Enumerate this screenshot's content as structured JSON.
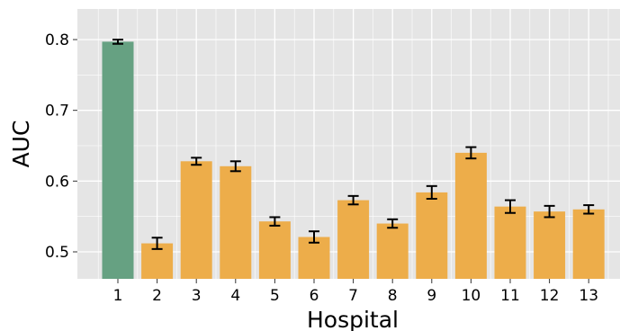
{
  "chart_data": {
    "type": "bar",
    "xlabel": "Hospital",
    "ylabel": "AUC",
    "categories": [
      "1",
      "2",
      "3",
      "4",
      "5",
      "6",
      "7",
      "8",
      "9",
      "10",
      "11",
      "12",
      "13"
    ],
    "values": [
      0.797,
      0.512,
      0.628,
      0.621,
      0.543,
      0.521,
      0.573,
      0.54,
      0.584,
      0.64,
      0.564,
      0.557,
      0.56
    ],
    "error": [
      0.003,
      0.008,
      0.005,
      0.007,
      0.006,
      0.008,
      0.006,
      0.006,
      0.009,
      0.008,
      0.009,
      0.008,
      0.006
    ],
    "bar_colors": [
      "#66a182",
      "#edad4a",
      "#edad4a",
      "#edad4a",
      "#edad4a",
      "#edad4a",
      "#edad4a",
      "#edad4a",
      "#edad4a",
      "#edad4a",
      "#edad4a",
      "#edad4a",
      "#edad4a"
    ],
    "ylim": [
      0.462,
      0.842
    ],
    "yticks": [
      0.5,
      0.6,
      0.7,
      0.8
    ],
    "ytick_labels": [
      "0.5",
      "0.6",
      "0.7",
      "0.8"
    ],
    "grid": true,
    "legend": "none"
  },
  "colors": {
    "plot_background": "#e5e5e5",
    "grid": "#ffffff",
    "error_bar": "#000000",
    "highlight_bar": "#66a182",
    "other_bar": "#edad4a"
  }
}
